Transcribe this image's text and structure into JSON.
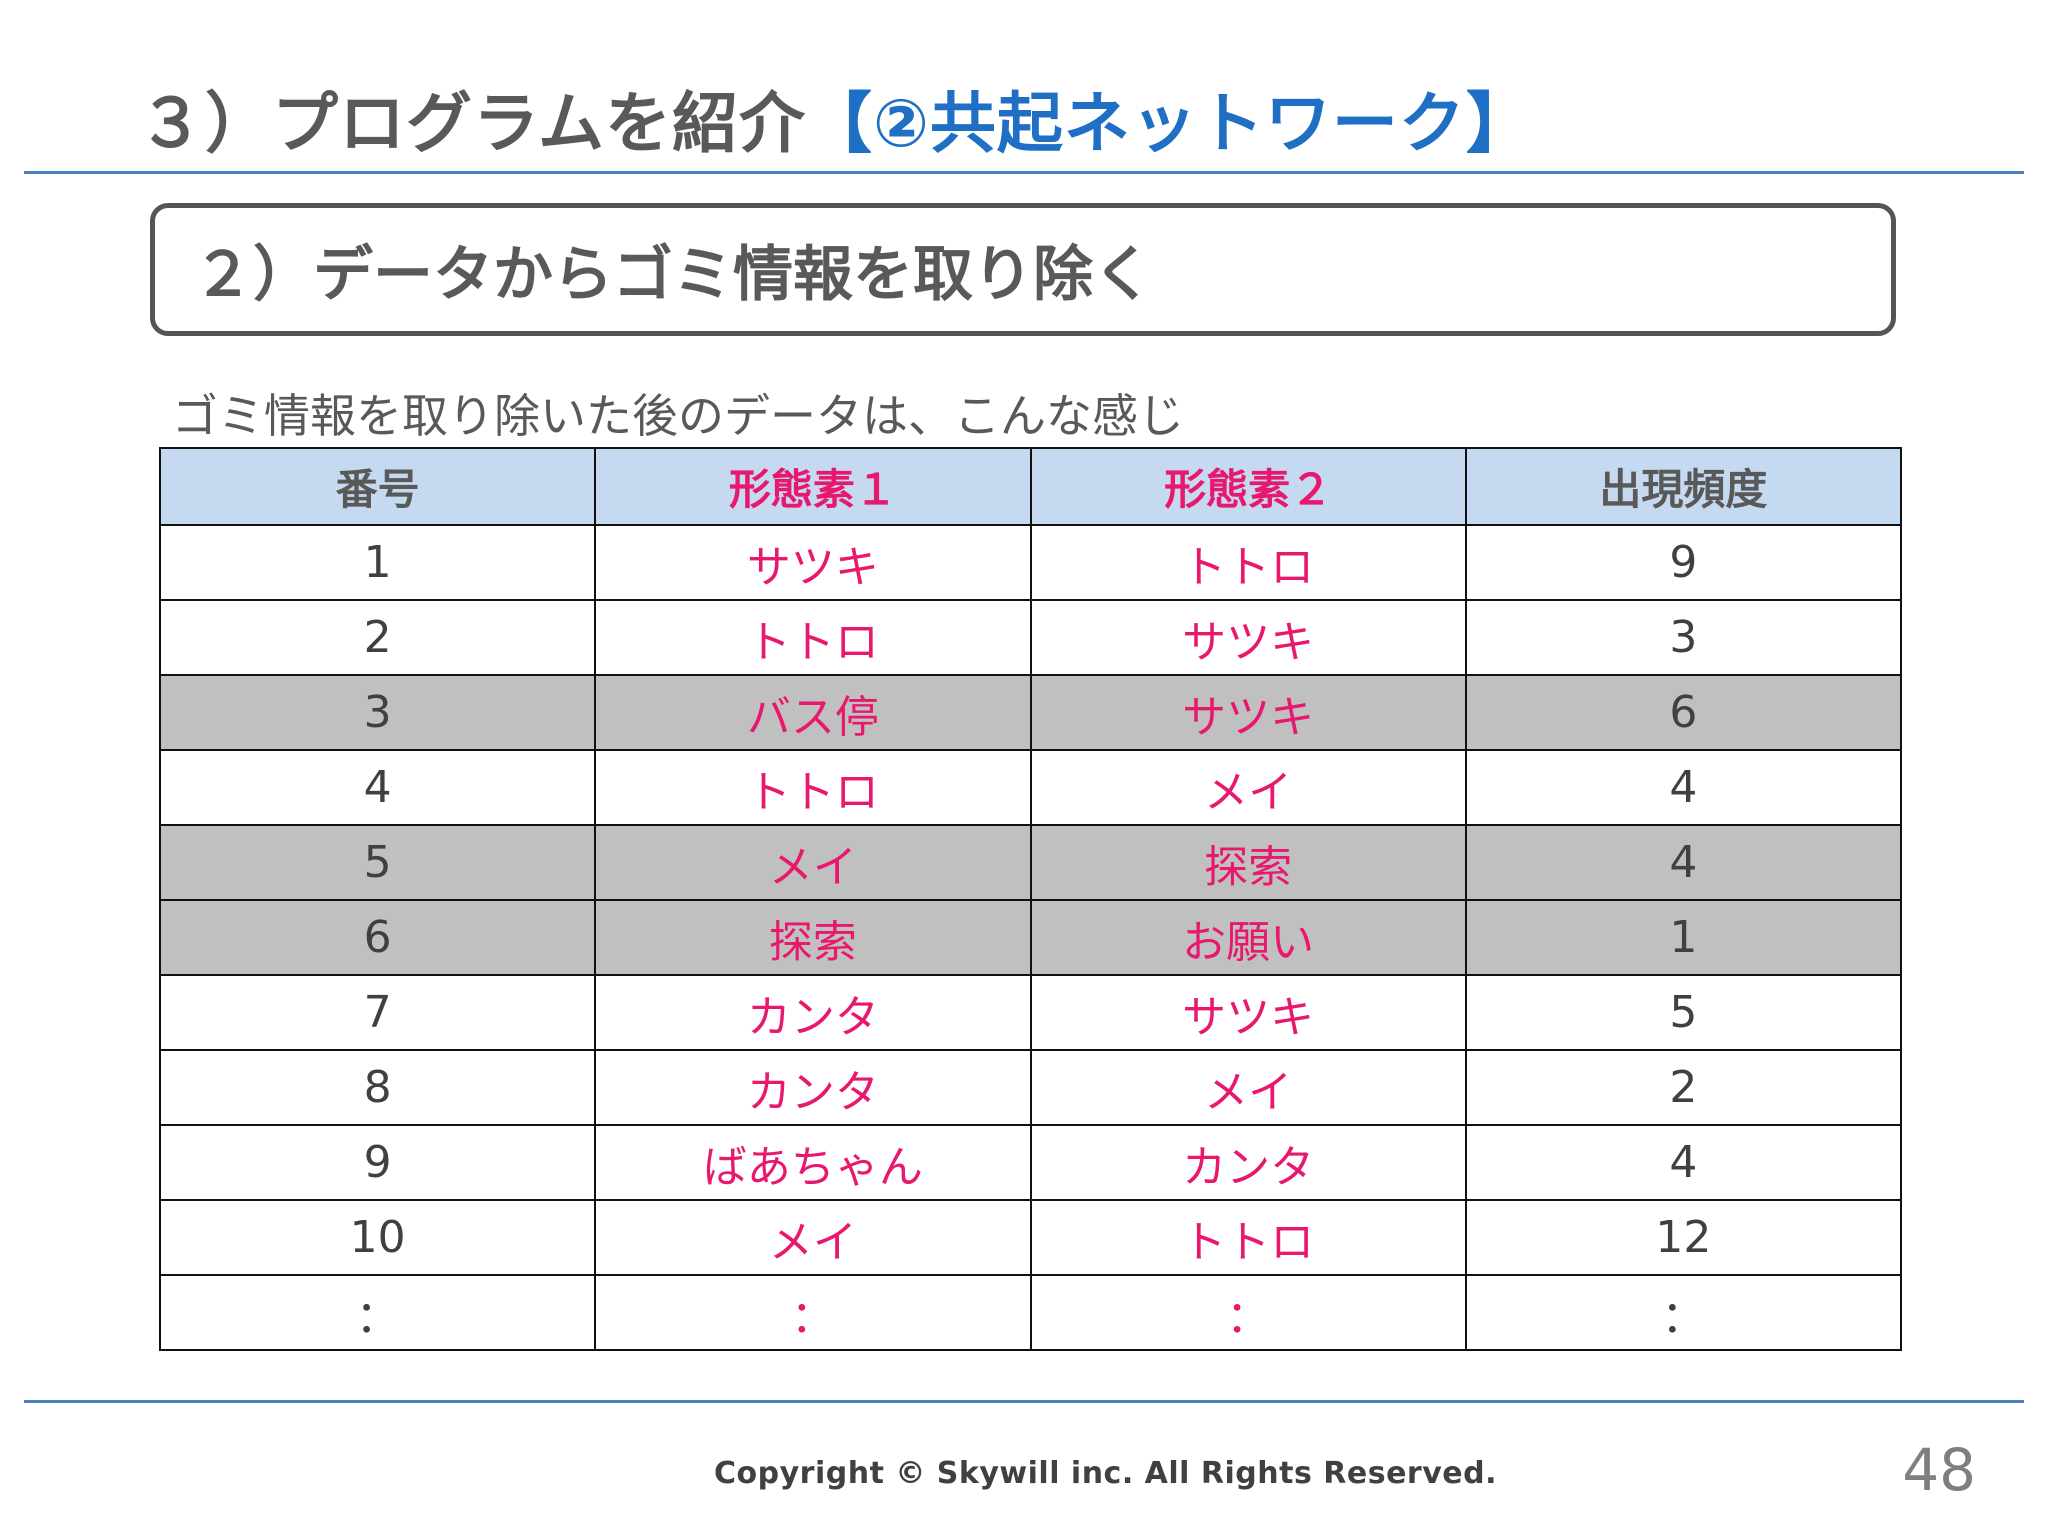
{
  "slide": {
    "title_main": "３）プログラムを紹介",
    "title_accent": "【②共起ネットワーク】",
    "subtitle": "２）データからゴミ情報を取り除く",
    "lead": "ゴミ情報を取り除いた後のデータは、こんな感じ",
    "copyright": "Copyright © Skywill inc. All Rights Reserved.",
    "page_number": "48"
  },
  "table": {
    "headers": [
      "番号",
      "形態素１",
      "形態素２",
      "出現頻度"
    ],
    "rows": [
      {
        "no": "1",
        "m1": "サツキ",
        "m2": "トトロ",
        "freq": "9",
        "shaded": false
      },
      {
        "no": "2",
        "m1": "トトロ",
        "m2": "サツキ",
        "freq": "3",
        "shaded": false
      },
      {
        "no": "3",
        "m1": "バス停",
        "m2": "サツキ",
        "freq": "6",
        "shaded": true
      },
      {
        "no": "4",
        "m1": "トトロ",
        "m2": "メイ",
        "freq": "4",
        "shaded": false
      },
      {
        "no": "5",
        "m1": "メイ",
        "m2": "探索",
        "freq": "4",
        "shaded": true
      },
      {
        "no": "6",
        "m1": "探索",
        "m2": "お願い",
        "freq": "1",
        "shaded": true
      },
      {
        "no": "7",
        "m1": "カンタ",
        "m2": "サツキ",
        "freq": "5",
        "shaded": false
      },
      {
        "no": "8",
        "m1": "カンタ",
        "m2": "メイ",
        "freq": "2",
        "shaded": false
      },
      {
        "no": "9",
        "m1": "ばあちゃん",
        "m2": "カンタ",
        "freq": "4",
        "shaded": false
      },
      {
        "no": "10",
        "m1": "メイ",
        "m2": "トトロ",
        "freq": "12",
        "shaded": false
      },
      {
        "no": "：",
        "m1": "：",
        "m2": "：",
        "freq": "：",
        "shaded": false
      }
    ]
  },
  "colors": {
    "accent_blue": "#1f6fc5",
    "morpheme_pink": "#e8186e",
    "header_bg": "#c5d9f1",
    "shaded_row_bg": "#c0c0c0",
    "rule_blue": "#4a80bd"
  }
}
